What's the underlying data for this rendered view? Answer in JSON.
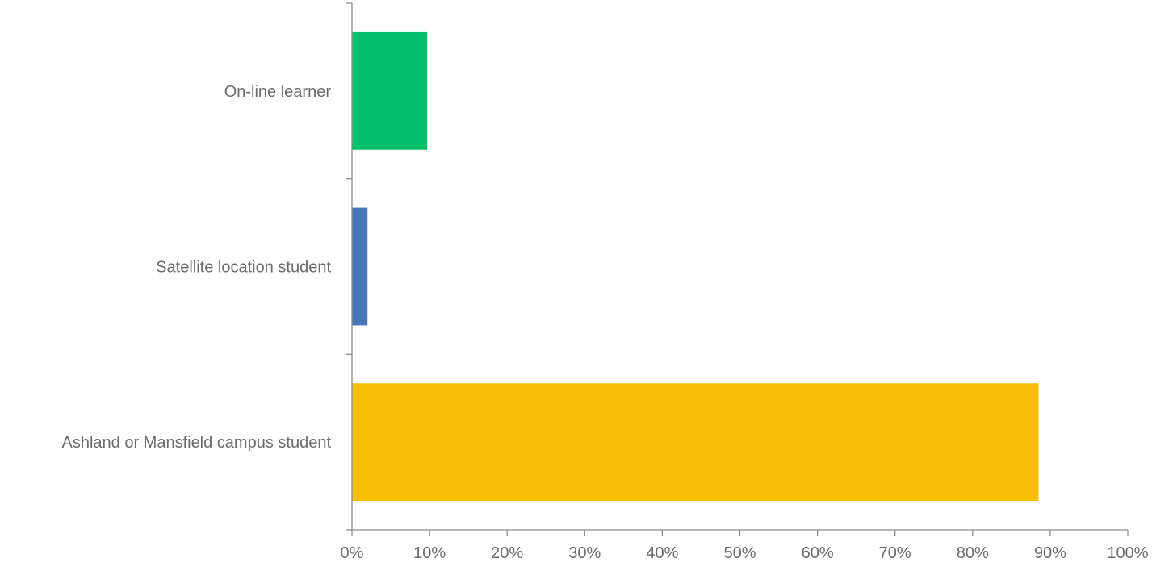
{
  "chart_data": {
    "type": "bar",
    "orientation": "horizontal",
    "categories": [
      "Ashland or Mansfield campus student",
      "Satellite location student",
      "On-line learner"
    ],
    "values": [
      88.5,
      2,
      9.7
    ],
    "colors": [
      "#f5be00",
      "#4a76b8",
      "#00bf6a"
    ],
    "value_unit": "%",
    "xlim": [
      0,
      100
    ],
    "x_ticks": [
      "0%",
      "10%",
      "20%",
      "30%",
      "40%",
      "50%",
      "60%",
      "70%",
      "80%",
      "90%",
      "100%"
    ],
    "title": "",
    "xlabel": "",
    "ylabel": "",
    "grid": false,
    "legend": "none"
  }
}
